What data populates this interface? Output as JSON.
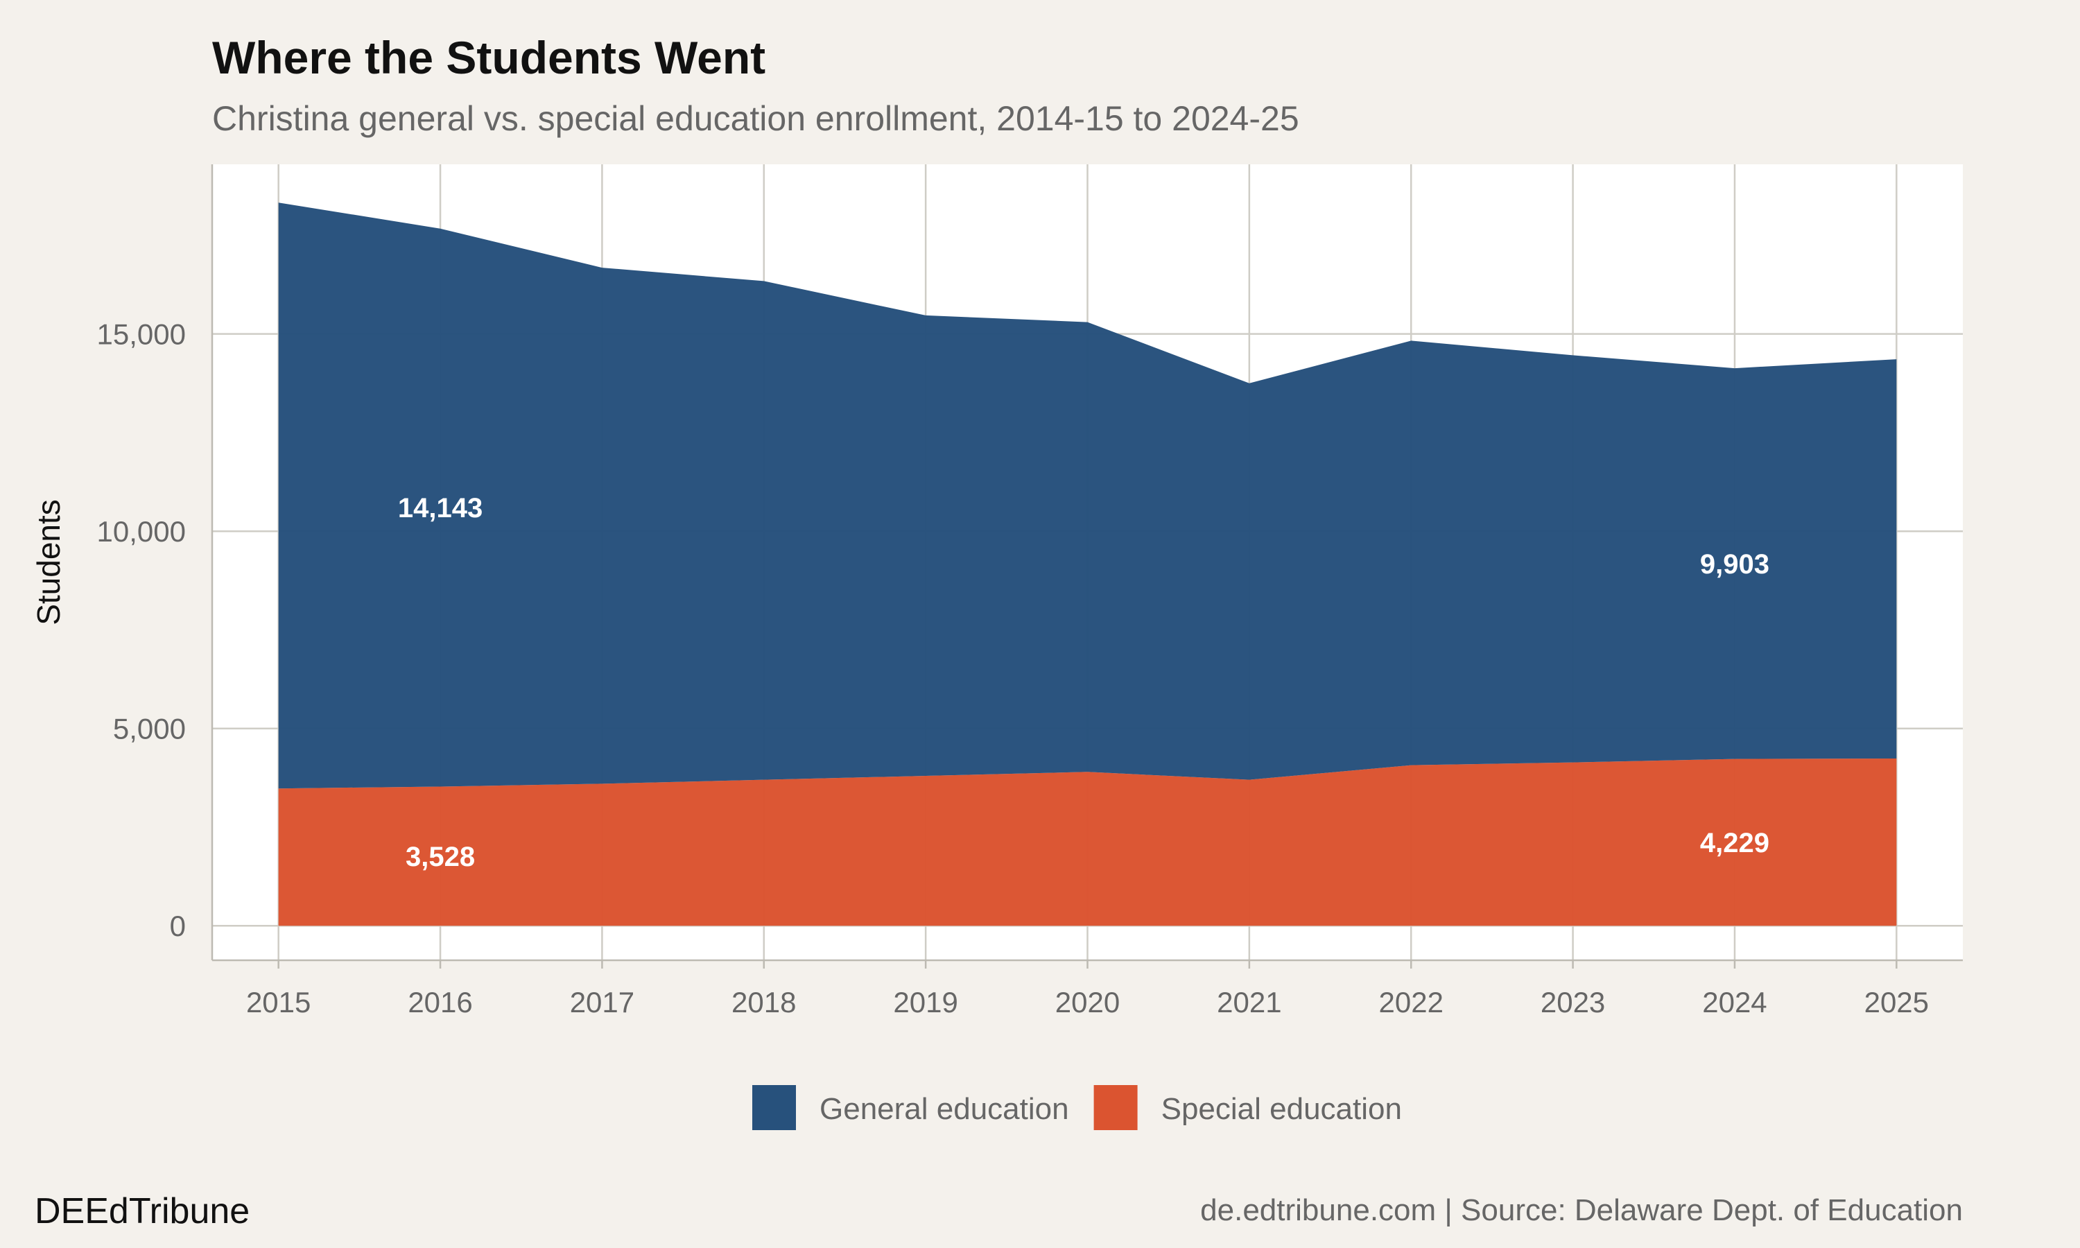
{
  "chart_data": {
    "type": "stacked_area",
    "title": "Where the Students Went",
    "subtitle": "Christina general vs. special education enrollment, 2014-15 to 2024-25",
    "y_label": "Students",
    "x": [
      2015,
      2016,
      2017,
      2018,
      2019,
      2020,
      2021,
      2022,
      2023,
      2024,
      2025
    ],
    "series": [
      {
        "name": "Special education",
        "color": "#db5430",
        "values": [
          3480,
          3528,
          3600,
          3700,
          3800,
          3900,
          3700,
          4070,
          4140,
          4229,
          4240
        ],
        "value_labels": [
          null,
          "3,528",
          null,
          null,
          null,
          null,
          null,
          null,
          null,
          "4,229",
          null
        ]
      },
      {
        "name": "General education",
        "color": "#27517c",
        "values": [
          14850,
          14143,
          13080,
          12640,
          11670,
          11400,
          10050,
          10760,
          10320,
          9903,
          10120
        ],
        "value_labels": [
          null,
          "14,143",
          null,
          null,
          null,
          null,
          null,
          null,
          null,
          "9,903",
          null
        ]
      }
    ],
    "legend_order": [
      1,
      0
    ],
    "xlim": [
      2014.59,
      2025.41
    ],
    "xticks": [
      2015,
      2016,
      2017,
      2018,
      2019,
      2020,
      2021,
      2022,
      2023,
      2024,
      2025
    ],
    "ylim": [
      -875,
      19300
    ],
    "yticks": [
      0,
      {
        "value": 5000,
        "label": "5,000"
      },
      {
        "value": 10000,
        "label": "10,000"
      },
      {
        "value": 15000,
        "label": "15,000"
      }
    ],
    "grid": true,
    "legend_position": "bottom",
    "footer_left": "DEEdTribune",
    "footer_right": "de.edtribune.com | Source: Delaware Dept. of Education"
  }
}
